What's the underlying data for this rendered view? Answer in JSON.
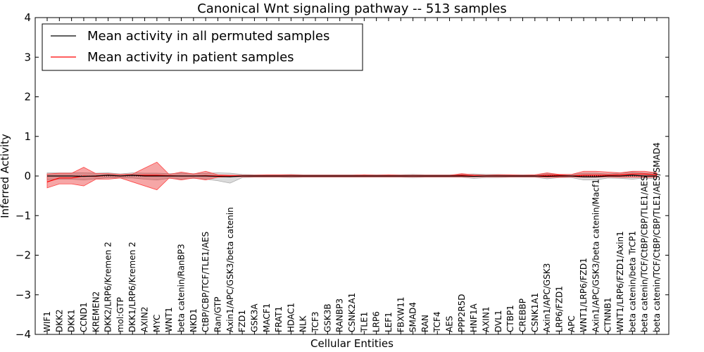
{
  "chart_data": {
    "type": "line",
    "title": "Canonical Wnt signaling pathway -- 513 samples",
    "xlabel": "Cellular Entities",
    "ylabel": "Inferred Activity",
    "ylim": [
      -4,
      4
    ],
    "yticks": [
      "−4",
      "−3",
      "−2",
      "−1",
      "0",
      "1",
      "2",
      "3",
      "4"
    ],
    "ytick_values": [
      -4,
      -3,
      -2,
      -1,
      0,
      1,
      2,
      3,
      4
    ],
    "legend_position": "top-left",
    "categories": [
      "WIF1",
      "DKK2",
      "DKK1",
      "CCND1",
      "KREMEN2",
      "DKK2/LRP6/Kremen 2",
      "mol:GTP",
      "DKK1/LRP6/Kremen 2",
      "AXIN2",
      "MYC",
      "WNT1",
      "beta catenin/RanBP3",
      "NKD1",
      "CtBP/CBP/TCF/TLE1/AES",
      "Ran/GTP",
      "Axin1/APC/GSK3/beta catenin",
      "FZD1",
      "GSK3A",
      "MACF1",
      "FRAT1",
      "HDAC1",
      "NLK",
      "TCF3",
      "GSK3B",
      "RANBP3",
      "CSNK2A1",
      "TLE1",
      "LRP6",
      "LEF1",
      "FBXW11",
      "SMAD4",
      "RAN",
      "TCF4",
      "AES",
      "PPP2R5D",
      "HNF1A",
      "AXIN1",
      "DVL1",
      "CTBP1",
      "CREBBP",
      "CSNK1A1",
      "Axin1/APC/GSK3",
      "LRP6/FZD1",
      "APC",
      "WNT1/LRP6/FZD1",
      "Axin1/APC/GSK3/beta catenin/Macf1",
      "CTNNB1",
      "WNT1/LRP6/FZD1/Axin1",
      "beta catenin/beta TrCP1",
      "beta catenin/TCF/CtBP/CBP/TLE1/AES",
      "beta catenin/TCF/CtBP/CBP/TLE1/AES/SMAD4"
    ],
    "series": [
      {
        "name": "Mean activity in all permuted samples",
        "color": "#000000",
        "values": [
          0.0,
          0.0,
          0.0,
          -0.01,
          0.0,
          0.02,
          0.0,
          0.02,
          0.0,
          0.0,
          0.0,
          0.0,
          0.0,
          0.0,
          -0.01,
          -0.02,
          0.0,
          0.0,
          0.0,
          0.0,
          0.0,
          0.0,
          0.0,
          0.0,
          0.0,
          0.0,
          0.0,
          0.0,
          0.0,
          0.0,
          0.0,
          0.0,
          0.0,
          0.0,
          0.0,
          -0.01,
          0.0,
          0.0,
          0.0,
          0.0,
          0.0,
          -0.01,
          0.0,
          0.0,
          -0.02,
          -0.02,
          0.0,
          0.0,
          0.02,
          0.0,
          0.0
        ],
        "lower": [
          -0.1,
          -0.08,
          -0.08,
          -0.1,
          -0.07,
          -0.04,
          -0.05,
          -0.05,
          -0.08,
          -0.1,
          -0.06,
          -0.08,
          -0.06,
          -0.08,
          -0.12,
          -0.18,
          -0.04,
          -0.03,
          -0.03,
          -0.03,
          -0.04,
          -0.03,
          -0.03,
          -0.03,
          -0.03,
          -0.03,
          -0.03,
          -0.03,
          -0.03,
          -0.03,
          -0.04,
          -0.03,
          -0.03,
          -0.03,
          -0.03,
          -0.06,
          -0.04,
          -0.04,
          -0.03,
          -0.03,
          -0.03,
          -0.07,
          -0.04,
          -0.04,
          -0.1,
          -0.1,
          -0.05,
          -0.06,
          -0.08,
          -0.05,
          -0.08
        ],
        "upper": [
          0.08,
          0.08,
          0.08,
          0.08,
          0.07,
          0.08,
          0.05,
          0.08,
          0.07,
          0.07,
          0.06,
          0.07,
          0.06,
          0.07,
          0.08,
          0.07,
          0.04,
          0.03,
          0.03,
          0.03,
          0.04,
          0.03,
          0.03,
          0.03,
          0.03,
          0.03,
          0.03,
          0.03,
          0.03,
          0.03,
          0.04,
          0.03,
          0.03,
          0.03,
          0.04,
          0.05,
          0.04,
          0.04,
          0.03,
          0.03,
          0.03,
          0.06,
          0.04,
          0.04,
          0.07,
          0.07,
          0.05,
          0.08,
          0.1,
          0.07,
          0.08
        ]
      },
      {
        "name": "Mean activity in patient samples",
        "color": "#ff0000",
        "values": [
          -0.15,
          -0.05,
          -0.05,
          0.0,
          -0.01,
          0.02,
          0.0,
          0.02,
          0.02,
          0.02,
          0.01,
          0.0,
          0.0,
          0.01,
          0.0,
          0.0,
          0.0,
          0.0,
          0.0,
          0.0,
          0.0,
          0.0,
          0.0,
          0.0,
          0.0,
          0.0,
          0.0,
          0.0,
          0.0,
          0.0,
          0.0,
          0.0,
          0.0,
          0.0,
          0.02,
          0.0,
          0.0,
          0.0,
          0.0,
          0.0,
          0.0,
          0.02,
          0.02,
          0.0,
          0.02,
          0.02,
          0.02,
          0.03,
          0.05,
          0.05,
          0.03
        ],
        "lower": [
          -0.3,
          -0.2,
          -0.2,
          -0.25,
          -0.08,
          -0.08,
          -0.05,
          -0.15,
          -0.25,
          -0.35,
          -0.05,
          -0.1,
          -0.05,
          -0.1,
          -0.03,
          -0.02,
          -0.02,
          -0.02,
          -0.02,
          -0.02,
          -0.02,
          -0.02,
          -0.02,
          -0.02,
          -0.02,
          -0.02,
          -0.02,
          -0.02,
          -0.02,
          -0.02,
          -0.02,
          -0.02,
          -0.02,
          -0.02,
          -0.02,
          -0.02,
          -0.02,
          -0.02,
          -0.02,
          -0.02,
          -0.02,
          -0.03,
          -0.03,
          -0.02,
          -0.03,
          -0.03,
          -0.02,
          -0.03,
          -0.03,
          -0.03,
          -0.03
        ],
        "upper": [
          0.05,
          0.07,
          0.07,
          0.22,
          0.06,
          0.06,
          0.04,
          0.05,
          0.2,
          0.35,
          0.04,
          0.1,
          0.05,
          0.12,
          0.03,
          0.02,
          0.02,
          0.02,
          0.03,
          0.03,
          0.03,
          0.02,
          0.02,
          0.02,
          0.02,
          0.02,
          0.03,
          0.02,
          0.03,
          0.02,
          0.02,
          0.02,
          0.02,
          0.02,
          0.06,
          0.03,
          0.02,
          0.03,
          0.03,
          0.02,
          0.03,
          0.08,
          0.04,
          0.04,
          0.12,
          0.12,
          0.1,
          0.08,
          0.12,
          0.12,
          0.08
        ]
      }
    ]
  }
}
